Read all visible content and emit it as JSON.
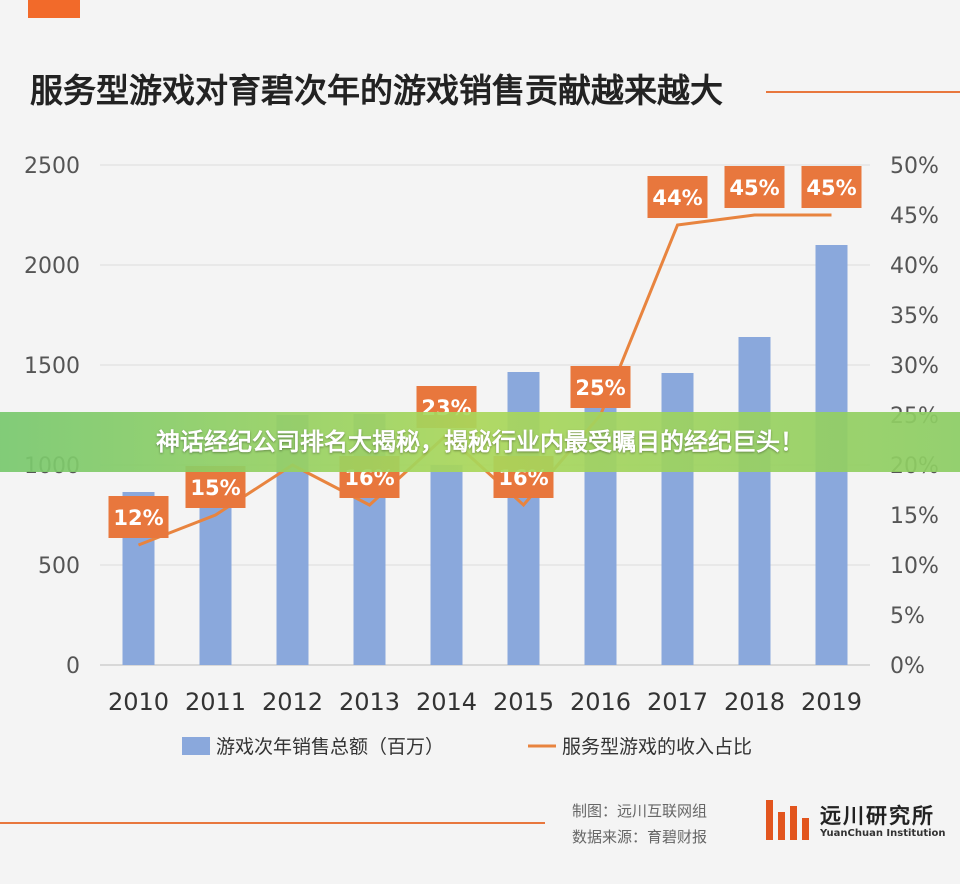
{
  "chart_data": {
    "type": "bar",
    "title": "服务型游戏对育碧次年的游戏销售贡献越来越大",
    "categories": [
      "2010",
      "2011",
      "2012",
      "2013",
      "2014",
      "2015",
      "2016",
      "2017",
      "2018",
      "2019"
    ],
    "series": [
      {
        "name": "游戏次年销售总额（百万）",
        "type": "bar",
        "axis": "left",
        "values": [
          865,
          985,
          1250,
          1255,
          1000,
          1465,
          1395,
          1460,
          1640,
          2100
        ]
      },
      {
        "name": "服务型游戏的收入占比",
        "type": "line",
        "axis": "right",
        "values": [
          12,
          15,
          20,
          16,
          23,
          16,
          25,
          44,
          45,
          45
        ],
        "labels": [
          "12%",
          "15%",
          "",
          "16%",
          "23%",
          "16%",
          "25%",
          "44%",
          "45%",
          "45%"
        ]
      }
    ],
    "y_left": {
      "range": [
        0,
        2500
      ],
      "ticks": [
        "0",
        "500",
        "1000",
        "1500",
        "2000",
        "2500"
      ]
    },
    "y_right": {
      "range": [
        0,
        50
      ],
      "ticks": [
        "0%",
        "5%",
        "10%",
        "15%",
        "20%",
        "25%",
        "30%",
        "35%",
        "40%",
        "45%",
        "50%"
      ]
    },
    "grid": true,
    "legend": "bottom",
    "colors": {
      "bar": "#8aa8dc",
      "line": "#e8843f",
      "label_bg": "#e8773d",
      "label_text": "#ffffff"
    }
  },
  "overlay": {
    "text": "神话经纪公司排名大揭秘，揭秘行业内最受瞩目的经纪巨头！"
  },
  "footer": {
    "credit_line1": "制图：远川互联网组",
    "credit_line2": "数据来源：育碧财报",
    "logo_cn": "远川研究所",
    "logo_en": "YuanChuan Institution"
  }
}
